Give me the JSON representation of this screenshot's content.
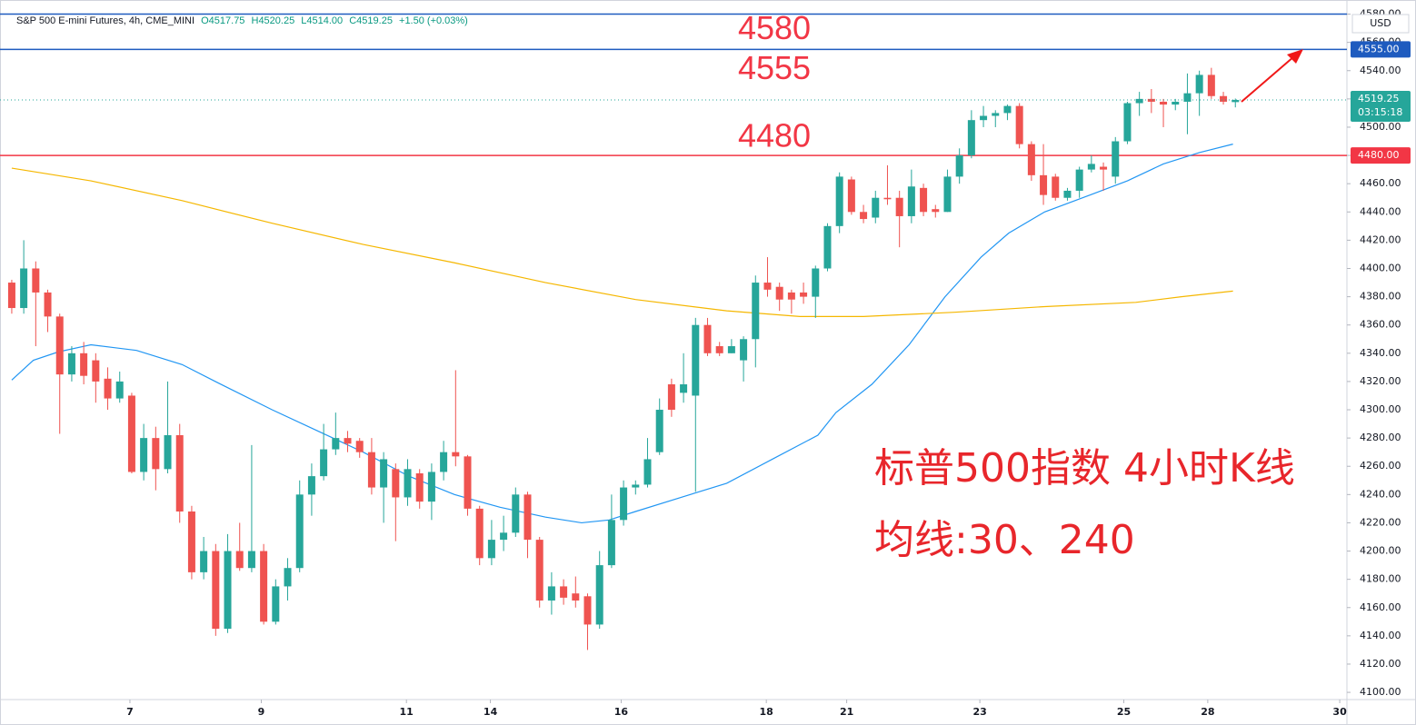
{
  "chart_data": {
    "type": "candlestick",
    "header": {
      "symbol": "S&P 500 E-mini Futures, 4h, CME_MINI",
      "open": "O4517.75",
      "high": "H4520.25",
      "low": "L4514.00",
      "close": "C4519.25",
      "change": "+1.50 (+0.03%)"
    },
    "currency": "USD",
    "countdown": "03:15:18",
    "up_color": "#26a69a",
    "down_color": "#ef5350",
    "x": [
      0,
      1,
      2,
      3,
      4,
      5,
      6,
      7,
      8,
      9,
      10,
      11,
      12,
      13,
      14,
      15,
      16,
      17,
      18,
      19,
      20,
      21,
      22,
      23,
      24,
      25,
      26,
      27,
      28,
      29,
      30,
      31,
      32,
      33,
      34,
      35,
      36,
      37,
      38,
      39,
      40,
      41,
      42,
      43,
      44,
      45,
      46,
      47,
      48,
      49,
      50,
      51,
      52,
      53,
      54,
      55,
      56,
      57,
      58,
      59,
      60,
      61,
      62,
      63,
      64,
      65,
      66,
      67,
      68,
      69,
      70,
      71,
      72,
      73,
      74,
      75,
      76,
      77,
      78,
      79,
      80,
      81,
      82,
      83,
      84,
      85,
      86,
      87,
      88,
      89,
      90,
      91,
      92,
      93,
      94,
      95,
      96,
      97,
      98,
      99,
      100,
      101,
      102
    ],
    "open": [
      4390,
      4372,
      4400,
      4383,
      4366,
      4325,
      4340,
      4335,
      4322,
      4308,
      4310,
      4256,
      4280,
      4258,
      4282,
      4228,
      4185,
      4200,
      4145,
      4200,
      4188,
      4200,
      4150,
      4175,
      4188,
      4240,
      4253,
      4272,
      4280,
      4278,
      4270,
      4245,
      4258,
      4238,
      4255,
      4235,
      4256,
      4270,
      4267,
      4230,
      4195,
      4208,
      4213,
      4240,
      4208,
      4165,
      4175,
      4170,
      4168,
      4148,
      4190,
      4222,
      4245,
      4247,
      4270,
      4318,
      4312,
      4310,
      4360,
      4345,
      4340,
      4335,
      4350,
      4390,
      4387,
      4383,
      4383,
      4380,
      4400,
      4430,
      4463,
      4440,
      4436,
      4450,
      4450,
      4437,
      4457,
      4442,
      4440,
      4465,
      4480,
      4505,
      4508,
      4510,
      4515,
      4488,
      4466,
      4465,
      4450,
      4455,
      4470,
      4472,
      4465,
      4490,
      4517,
      4520,
      4518,
      4516,
      4518,
      4524,
      4537,
      4522,
      4517.75
    ],
    "high": [
      4392,
      4420,
      4405,
      4385,
      4368,
      4345,
      4348,
      4340,
      4330,
      4327,
      4312,
      4290,
      4288,
      4320,
      4290,
      4232,
      4210,
      4205,
      4212,
      4220,
      4275,
      4205,
      4180,
      4195,
      4250,
      4262,
      4290,
      4298,
      4285,
      4280,
      4280,
      4270,
      4262,
      4265,
      4258,
      4262,
      4278,
      4328,
      4268,
      4232,
      4222,
      4225,
      4245,
      4242,
      4210,
      4185,
      4180,
      4182,
      4170,
      4200,
      4240,
      4250,
      4250,
      4280,
      4308,
      4322,
      4340,
      4365,
      4365,
      4348,
      4350,
      4352,
      4395,
      4408,
      4390,
      4385,
      4390,
      4402,
      4432,
      4468,
      4465,
      4445,
      4455,
      4473,
      4455,
      4470,
      4460,
      4445,
      4470,
      4485,
      4512,
      4515,
      4512,
      4516,
      4517,
      4490,
      4488,
      4467,
      4457,
      4472,
      4480,
      4475,
      4493,
      4518,
      4525,
      4527,
      4520,
      4520,
      4538,
      4540,
      4542,
      4525,
      4520.25
    ],
    "low": [
      4368,
      4368,
      4345,
      4355,
      4283,
      4320,
      4318,
      4305,
      4300,
      4305,
      4255,
      4250,
      4243,
      4255,
      4220,
      4180,
      4180,
      4140,
      4142,
      4186,
      4185,
      4148,
      4148,
      4165,
      4185,
      4225,
      4250,
      4268,
      4270,
      4266,
      4240,
      4220,
      4207,
      4232,
      4230,
      4222,
      4250,
      4260,
      4225,
      4190,
      4190,
      4200,
      4210,
      4195,
      4160,
      4155,
      4162,
      4160,
      4130,
      4145,
      4188,
      4218,
      4240,
      4245,
      4268,
      4295,
      4305,
      4242,
      4338,
      4338,
      4340,
      4320,
      4330,
      4380,
      4370,
      4368,
      4375,
      4365,
      4398,
      4425,
      4438,
      4432,
      4432,
      4445,
      4415,
      4432,
      4437,
      4436,
      4440,
      4460,
      4478,
      4500,
      4500,
      4505,
      4485,
      4462,
      4445,
      4448,
      4448,
      4450,
      4468,
      4455,
      4460,
      4488,
      4508,
      4510,
      4500,
      4512,
      4495,
      4508,
      4520,
      4516,
      4514
    ],
    "close": [
      4372,
      4400,
      4383,
      4366,
      4325,
      4340,
      4324,
      4320,
      4308,
      4320,
      4256,
      4280,
      4258,
      4282,
      4228,
      4185,
      4200,
      4145,
      4200,
      4188,
      4200,
      4150,
      4175,
      4188,
      4240,
      4253,
      4272,
      4280,
      4276,
      4270,
      4245,
      4265,
      4238,
      4258,
      4235,
      4256,
      4270,
      4267,
      4230,
      4195,
      4208,
      4213,
      4240,
      4208,
      4165,
      4175,
      4167,
      4165,
      4148,
      4190,
      4222,
      4245,
      4247,
      4265,
      4300,
      4300,
      4318,
      4360,
      4340,
      4340,
      4345,
      4350,
      4390,
      4385,
      4378,
      4378,
      4380,
      4400,
      4430,
      4465,
      4440,
      4435,
      4450,
      4449,
      4437,
      4458,
      4440,
      4440,
      4465,
      4480,
      4505,
      4508,
      4510,
      4515,
      4488,
      4466,
      4452,
      4450,
      4455,
      4470,
      4474,
      4470,
      4490,
      4517,
      4520,
      4518,
      4516,
      4518,
      4524,
      4537,
      4522,
      4518,
      4519.25
    ],
    "moving_averages": [
      {
        "color": "#2196f3",
        "x": [
          0,
          1.8,
          3.9,
          6.6,
          10.4,
          14.2,
          17.2,
          21.7,
          25.5,
          29.3,
          33.1,
          36.9,
          40.7,
          44.5,
          47.5,
          49.8,
          52,
          55.8,
          59.6,
          63.4,
          67.2,
          68.7,
          71.7,
          74.8,
          77.8,
          80.8,
          83.1,
          86.1,
          89.9,
          93,
          96,
          99,
          101.8
        ],
        "values": [
          4321,
          4335,
          4341,
          4346,
          4342,
          4332,
          4319,
          4300,
          4285,
          4270,
          4253,
          4240,
          4231,
          4224,
          4220,
          4222,
          4228,
          4238,
          4248,
          4265,
          4282,
          4298,
          4318,
          4346,
          4380,
          4408,
          4425,
          4440,
          4452,
          4462,
          4474,
          4482,
          4488
        ]
      },
      {
        "color": "#f5b700",
        "x": [
          0,
          6.6,
          14.2,
          21.7,
          29.3,
          36.9,
          44.5,
          52,
          59.6,
          65.7,
          71,
          78.6,
          86.1,
          93.7,
          97.5,
          101.8
        ],
        "values": [
          4471,
          4462,
          4448,
          4432,
          4417,
          4404,
          4390,
          4378,
          4370,
          4366,
          4366,
          4369,
          4373,
          4376,
          4380,
          4384
        ]
      }
    ],
    "levels": [
      {
        "value": 4580,
        "axis_label": "4580.00",
        "color": "#1e5bbf"
      },
      {
        "value": 4555,
        "axis_label": "4555.00",
        "color": "#1e5bbf"
      },
      {
        "value": 4480,
        "axis_label": "4480.00",
        "color": "#f23645"
      }
    ],
    "annotations": [
      "标普500指数 4小时K线",
      "均线:30、240"
    ],
    "xlim": [
      -0.98,
      111.3
    ],
    "ylim": [
      4094.9,
      4590
    ],
    "xticks": [
      {
        "value": 9.85,
        "label": "7"
      },
      {
        "value": 20.8,
        "label": "9"
      },
      {
        "value": 32.9,
        "label": "11"
      },
      {
        "value": 39.9,
        "label": "14"
      },
      {
        "value": 50.8,
        "label": "16"
      },
      {
        "value": 62.9,
        "label": "18"
      },
      {
        "value": 69.6,
        "label": "21"
      },
      {
        "value": 80.7,
        "label": "23"
      },
      {
        "value": 92.7,
        "label": "25"
      },
      {
        "value": 99.7,
        "label": "28"
      },
      {
        "value": 110.7,
        "label": "30"
      }
    ],
    "yticks": [
      {
        "value": 4100,
        "label": "4100.00"
      },
      {
        "value": 4120,
        "label": "4120.00"
      },
      {
        "value": 4140,
        "label": "4140.00"
      },
      {
        "value": 4160,
        "label": "4160.00"
      },
      {
        "value": 4180,
        "label": "4180.00"
      },
      {
        "value": 4200,
        "label": "4200.00"
      },
      {
        "value": 4220,
        "label": "4220.00"
      },
      {
        "value": 4240,
        "label": "4240.00"
      },
      {
        "value": 4260,
        "label": "4260.00"
      },
      {
        "value": 4280,
        "label": "4280.00"
      },
      {
        "value": 4300,
        "label": "4300.00"
      },
      {
        "value": 4320,
        "label": "4320.00"
      },
      {
        "value": 4340,
        "label": "4340.00"
      },
      {
        "value": 4360,
        "label": "4360.00"
      },
      {
        "value": 4380,
        "label": "4380.00"
      },
      {
        "value": 4400,
        "label": "4400.00"
      },
      {
        "value": 4420,
        "label": "4420.00"
      },
      {
        "value": 4440,
        "label": "4440.00"
      },
      {
        "value": 4460,
        "label": "4460.00"
      },
      {
        "value": 4480,
        "label": "4480.00"
      },
      {
        "value": 4500,
        "label": "4500.00"
      },
      {
        "value": 4520,
        "label": "4520.00"
      },
      {
        "value": 4540,
        "label": "4540.00"
      },
      {
        "value": 4560,
        "label": "4560.00"
      },
      {
        "value": 4580,
        "label": "4580.00"
      }
    ],
    "grid": false
  }
}
